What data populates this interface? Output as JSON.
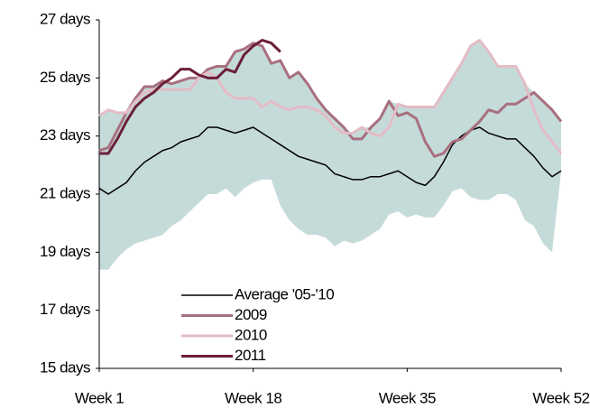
{
  "chart_data": {
    "type": "line",
    "x": [
      1,
      2,
      3,
      4,
      5,
      6,
      7,
      8,
      9,
      10,
      11,
      12,
      13,
      14,
      15,
      16,
      17,
      18,
      19,
      20,
      21,
      22,
      23,
      24,
      25,
      26,
      27,
      28,
      29,
      30,
      31,
      32,
      33,
      34,
      35,
      36,
      37,
      38,
      39,
      40,
      41,
      42,
      43,
      44,
      45,
      46,
      47,
      48,
      49,
      50,
      51,
      52
    ],
    "xlim": [
      1,
      52
    ],
    "xticks": [
      {
        "value": 1,
        "label": "Week 1"
      },
      {
        "value": 18,
        "label": "Week 18"
      },
      {
        "value": 35,
        "label": "Week 35"
      },
      {
        "value": 52,
        "label": "Week 52"
      }
    ],
    "ylim": [
      15,
      27
    ],
    "yticks": [
      {
        "value": 15,
        "label": "15 days"
      },
      {
        "value": 17,
        "label": "17 days"
      },
      {
        "value": 19,
        "label": "19 days"
      },
      {
        "value": 21,
        "label": "21 days"
      },
      {
        "value": 23,
        "label": "23 days"
      },
      {
        "value": 25,
        "label": "25 days"
      },
      {
        "value": 27,
        "label": "27 days"
      }
    ],
    "band": {
      "color": "#c5dbd9",
      "lower": [
        18.4,
        18.4,
        18.8,
        19.1,
        19.3,
        19.4,
        19.5,
        19.6,
        19.9,
        20.1,
        20.4,
        20.7,
        21.0,
        21.0,
        21.2,
        20.9,
        21.2,
        21.4,
        21.5,
        21.5,
        20.6,
        20.1,
        19.8,
        19.6,
        19.6,
        19.5,
        19.2,
        19.4,
        19.3,
        19.4,
        19.6,
        19.8,
        20.3,
        20.4,
        20.2,
        20.3,
        20.2,
        20.2,
        20.6,
        21.1,
        21.2,
        20.9,
        20.8,
        20.8,
        21.0,
        21.0,
        20.8,
        20.1,
        19.9,
        19.3,
        19.0,
        21.8
      ],
      "upper": [
        23.7,
        23.9,
        23.8,
        23.8,
        24.3,
        24.7,
        24.7,
        24.9,
        24.8,
        24.9,
        25.0,
        25.0,
        25.3,
        25.4,
        25.4,
        25.9,
        26.0,
        26.2,
        26.1,
        25.5,
        25.6,
        25.0,
        25.2,
        24.8,
        24.3,
        23.9,
        23.6,
        23.3,
        23.1,
        23.3,
        23.3,
        23.6,
        24.2,
        24.1,
        24.0,
        24.0,
        24.0,
        24.0,
        24.5,
        25.0,
        25.5,
        26.1,
        26.3,
        25.9,
        25.4,
        25.4,
        25.4,
        24.8,
        24.5,
        24.2,
        23.9,
        23.5
      ]
    },
    "series": [
      {
        "name": "Average '05-'10",
        "color": "#000000",
        "width": 1.5,
        "values": [
          21.2,
          21.0,
          21.2,
          21.4,
          21.8,
          22.1,
          22.3,
          22.5,
          22.6,
          22.8,
          22.9,
          23.0,
          23.3,
          23.3,
          23.2,
          23.1,
          23.2,
          23.3,
          23.1,
          22.9,
          22.7,
          22.5,
          22.3,
          22.2,
          22.1,
          22.0,
          21.7,
          21.6,
          21.5,
          21.5,
          21.6,
          21.6,
          21.7,
          21.8,
          21.6,
          21.4,
          21.3,
          21.6,
          22.1,
          22.7,
          23.0,
          23.2,
          23.3,
          23.1,
          23.0,
          22.9,
          22.9,
          22.6,
          22.3,
          21.9,
          21.6,
          21.8
        ]
      },
      {
        "name": "2009",
        "color": "#a8707f",
        "width": 3,
        "values": [
          22.5,
          22.6,
          23.2,
          23.8,
          24.3,
          24.7,
          24.7,
          24.9,
          24.8,
          24.9,
          25.0,
          25.0,
          25.3,
          25.4,
          25.4,
          25.9,
          26.0,
          26.2,
          26.1,
          25.5,
          25.6,
          25.0,
          25.2,
          24.8,
          24.3,
          23.9,
          23.6,
          23.3,
          22.9,
          22.9,
          23.3,
          23.6,
          24.2,
          23.7,
          23.8,
          23.6,
          22.8,
          22.3,
          22.4,
          22.8,
          22.9,
          23.2,
          23.5,
          23.9,
          23.8,
          24.1,
          24.1,
          24.3,
          24.5,
          24.2,
          23.9,
          23.5
        ]
      },
      {
        "name": "2010",
        "color": "#e3bcc6",
        "width": 3,
        "values": [
          23.7,
          23.9,
          23.8,
          23.8,
          24.2,
          24.5,
          24.6,
          24.6,
          24.6,
          24.6,
          24.6,
          25.0,
          25.2,
          25.0,
          24.5,
          24.3,
          24.3,
          24.3,
          24.0,
          24.2,
          24.0,
          23.9,
          24.0,
          24.0,
          23.9,
          23.7,
          23.3,
          23.1,
          23.1,
          23.3,
          23.1,
          23.0,
          23.3,
          24.1,
          24.0,
          24.0,
          24.0,
          24.0,
          24.5,
          25.0,
          25.5,
          26.1,
          26.3,
          25.9,
          25.4,
          25.4,
          25.4,
          24.8,
          23.9,
          23.2,
          22.8,
          22.4
        ]
      },
      {
        "name": "2011",
        "color": "#6b1f38",
        "width": 3,
        "values": [
          22.4,
          22.4,
          22.9,
          23.5,
          24.0,
          24.3,
          24.5,
          24.8,
          25.0,
          25.3,
          25.3,
          25.1,
          25.0,
          25.0,
          25.3,
          25.2,
          25.8,
          26.1,
          26.3,
          26.2,
          25.9,
          null,
          null,
          null,
          null,
          null,
          null,
          null,
          null,
          null,
          null,
          null,
          null,
          null,
          null,
          null,
          null,
          null,
          null,
          null,
          null,
          null,
          null,
          null,
          null,
          null,
          null,
          null,
          null,
          null,
          null,
          null
        ]
      }
    ]
  }
}
